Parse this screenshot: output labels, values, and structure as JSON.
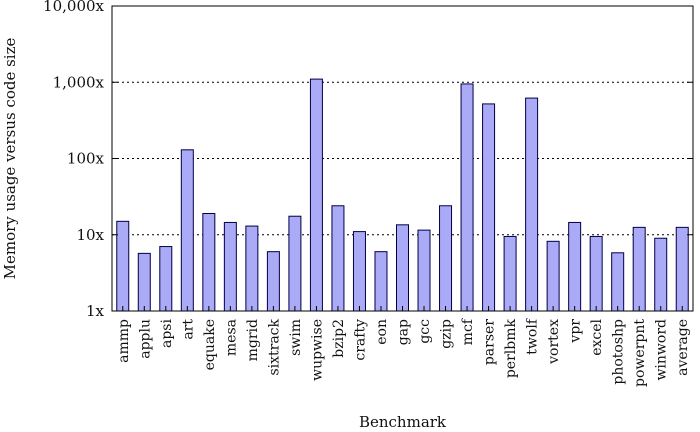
{
  "chart_data": {
    "type": "bar",
    "title": "",
    "xlabel": "Benchmark",
    "ylabel": "Memory usage versus code size",
    "yscale": "log",
    "ylim": [
      1,
      10000
    ],
    "yticks": [
      {
        "value": 1,
        "label": "1x"
      },
      {
        "value": 10,
        "label": "10x"
      },
      {
        "value": 100,
        "label": "100x"
      },
      {
        "value": 1000,
        "label": "1,000x"
      },
      {
        "value": 10000,
        "label": "10,000x"
      }
    ],
    "grid": "horizontal dotted",
    "bar_color": "#aaaaf6",
    "bar_edge_color": "#000044",
    "categories": [
      "ammp",
      "applu",
      "apsi",
      "art",
      "equake",
      "mesa",
      "mgrid",
      "sixtrack",
      "swim",
      "wupwise",
      "bzip2",
      "crafty",
      "eon",
      "gap",
      "gcc",
      "gzip",
      "mcf",
      "parser",
      "perlbmk",
      "twolf",
      "vortex",
      "vpr",
      "excel",
      "photoshp",
      "powerpnt",
      "winword",
      "average"
    ],
    "values": [
      15,
      5.7,
      7,
      130,
      19,
      14.5,
      13,
      6,
      17.5,
      1100,
      24,
      11,
      6,
      13.5,
      11.5,
      24,
      950,
      520,
      9.5,
      620,
      8.2,
      14.5,
      9.5,
      5.8,
      12.5,
      9,
      12.5
    ]
  }
}
